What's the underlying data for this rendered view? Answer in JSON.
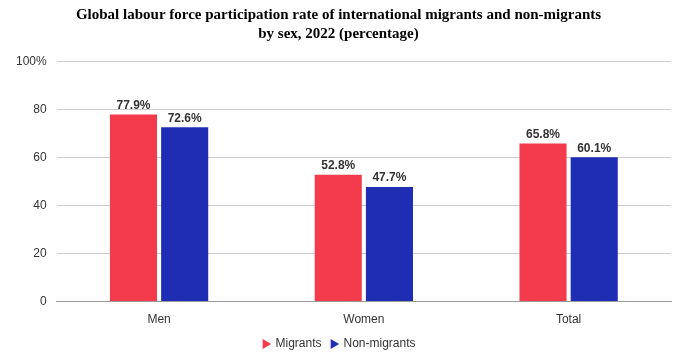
{
  "chart_data": {
    "type": "bar",
    "title": [
      "Global labour force participation rate of international migrants and non-migrants",
      "by sex, 2022 (percentage)"
    ],
    "categories": [
      "Men",
      "Women",
      "Total"
    ],
    "series": [
      {
        "name": "Migrants",
        "color": "#f43b4c",
        "values": [
          77.9,
          52.8,
          65.8
        ],
        "value_labels": [
          "77.9%",
          "52.8%",
          "65.8%"
        ]
      },
      {
        "name": "Non-migrants",
        "color": "#1f2db4",
        "values": [
          72.6,
          47.7,
          60.1
        ],
        "value_labels": [
          "72.6%",
          "47.7%",
          "60.1%"
        ]
      }
    ],
    "ylim": [
      0,
      100
    ],
    "yticks": [
      0,
      20,
      40,
      60,
      80,
      {
        "value": 100,
        "label": "100%"
      }
    ],
    "grid": true,
    "legend": "bottom",
    "data_labels": true
  }
}
